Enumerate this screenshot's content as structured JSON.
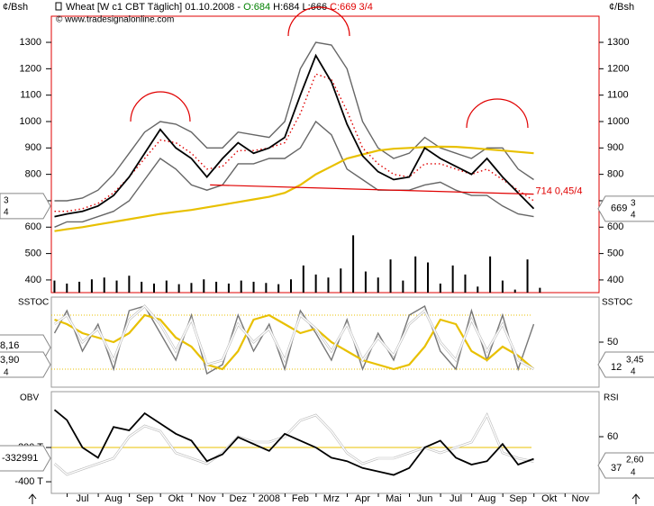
{
  "chart_data": [
    {
      "type": "line",
      "title": "Wheat [W c1 CBT  Täglich] 01.10.2008 -",
      "open_label": "O:684",
      "high_label": "H:684",
      "low_label": "L:666",
      "close_label": "C:669 3/4",
      "source": "© www.tradesignalonline.com",
      "y_label": "¢/Bsh",
      "x": [
        -0.4,
        0,
        0.5,
        1,
        1.5,
        2,
        2.5,
        3,
        3.5,
        4,
        4.5,
        5,
        5.5,
        6,
        6.5,
        7,
        7.5,
        8,
        8.5,
        9,
        9.5,
        10,
        10.5,
        11,
        11.5,
        12,
        12.5,
        13,
        13.5,
        14,
        14.5,
        15
      ],
      "series": [
        {
          "color": "#666666",
          "values": [
            700,
            700,
            710,
            740,
            800,
            880,
            960,
            1000,
            990,
            960,
            900,
            900,
            960,
            950,
            940,
            1000,
            1200,
            1300,
            1290,
            1200,
            1000,
            900,
            860,
            880,
            940,
            900,
            880,
            860,
            900,
            900,
            820,
            780
          ]
        },
        {
          "color": "#666666",
          "values": [
            600,
            620,
            620,
            640,
            660,
            700,
            780,
            860,
            820,
            760,
            740,
            760,
            840,
            840,
            860,
            860,
            900,
            1000,
            950,
            820,
            780,
            740,
            740,
            740,
            760,
            770,
            740,
            720,
            720,
            680,
            650,
            640
          ]
        },
        {
          "color": "#e8c000",
          "values": [
            585,
            592,
            600,
            610,
            620,
            630,
            640,
            650,
            658,
            665,
            675,
            685,
            695,
            705,
            715,
            730,
            760,
            800,
            830,
            860,
            875,
            890,
            897,
            900,
            903,
            905,
            904,
            900,
            895,
            890,
            885,
            880
          ]
        },
        {
          "color": "#e00000",
          "values": [
            660,
            660,
            670,
            690,
            730,
            790,
            860,
            930,
            920,
            880,
            820,
            830,
            890,
            890,
            900,
            920,
            1030,
            1180,
            1160,
            1040,
            900,
            840,
            800,
            790,
            840,
            840,
            820,
            800,
            820,
            780,
            740,
            700
          ]
        },
        {
          "color": "#000000",
          "values": [
            640,
            650,
            660,
            680,
            720,
            790,
            880,
            970,
            900,
            860,
            790,
            860,
            920,
            880,
            900,
            940,
            1100,
            1250,
            1150,
            990,
            870,
            810,
            780,
            790,
            900,
            860,
            830,
            800,
            860,
            790,
            730,
            670
          ]
        }
      ],
      "trendline": {
        "x": [
          4.6,
          15
        ],
        "values": [
          760,
          725
        ],
        "color": "#e00000"
      },
      "trendline_label": "714 0,45/4",
      "last_price": {
        "main": "669",
        "num": "3",
        "den": "4"
      },
      "left_tag": {
        "num": "3",
        "den": "4"
      },
      "xlim": [
        -0.5,
        17.1
      ],
      "xticks": [
        {
          "value": 0.5,
          "label": "Jul"
        },
        {
          "value": 1.5,
          "label": "Aug"
        },
        {
          "value": 2.5,
          "label": "Sep"
        },
        {
          "value": 3.5,
          "label": "Okt"
        },
        {
          "value": 4.5,
          "label": "Nov"
        },
        {
          "value": 5.5,
          "label": "Dez"
        },
        {
          "value": 6.5,
          "label": "2008"
        },
        {
          "value": 7.5,
          "label": "Feb"
        },
        {
          "value": 8.5,
          "label": "Mrz"
        },
        {
          "value": 9.5,
          "label": "Apr"
        },
        {
          "value": 10.5,
          "label": "Mai"
        },
        {
          "value": 11.5,
          "label": "Jun"
        },
        {
          "value": 12.5,
          "label": "Jul"
        },
        {
          "value": 13.5,
          "label": "Aug"
        },
        {
          "value": 14.5,
          "label": "Sep"
        },
        {
          "value": 15.5,
          "label": "Okt"
        },
        {
          "value": 16.5,
          "label": "Nov"
        }
      ],
      "ylim": [
        352,
        1399
      ],
      "yticks": [
        400,
        500,
        600,
        700,
        800,
        900,
        1000,
        1100,
        1200,
        1300
      ]
    },
    {
      "type": "bar",
      "x": [
        -0.4,
        0,
        0.4,
        0.8,
        1.2,
        1.6,
        2,
        2.4,
        2.8,
        3.2,
        3.6,
        4,
        4.4,
        4.8,
        5.2,
        5.6,
        6,
        6.4,
        6.8,
        7.2,
        7.6,
        8,
        8.4,
        8.8,
        9.2,
        9.6,
        10,
        10.4,
        10.8,
        11.2,
        11.6,
        12,
        12.4,
        12.8,
        13.2,
        13.6,
        14,
        14.4,
        14.8,
        15.2
      ],
      "values": [
        20,
        15,
        18,
        22,
        25,
        20,
        28,
        18,
        15,
        20,
        14,
        16,
        22,
        18,
        15,
        20,
        18,
        16,
        14,
        22,
        45,
        30,
        25,
        40,
        95,
        35,
        25,
        55,
        20,
        60,
        50,
        15,
        45,
        30,
        10,
        60,
        20,
        5,
        55,
        8
      ],
      "color": "#000000",
      "ylim": [
        0,
        100
      ]
    },
    {
      "type": "line",
      "title": "SSTOC",
      "x": [
        -0.4,
        0,
        0.5,
        1,
        1.5,
        2,
        2.5,
        3,
        3.5,
        4,
        4.5,
        5,
        5.5,
        6,
        6.5,
        7,
        7.5,
        8,
        8.5,
        9,
        9.5,
        10,
        10.5,
        11,
        11.5,
        12,
        12.5,
        13,
        13.5,
        14,
        14.5,
        15
      ],
      "series": [
        {
          "color": "#777777",
          "values": [
            60,
            85,
            40,
            70,
            20,
            85,
            90,
            60,
            30,
            80,
            15,
            25,
            80,
            40,
            70,
            20,
            85,
            60,
            30,
            75,
            20,
            60,
            30,
            80,
            90,
            40,
            20,
            85,
            30,
            80,
            20,
            70
          ]
        },
        {
          "color": "#e8c000",
          "values": [
            75,
            70,
            60,
            55,
            50,
            60,
            80,
            75,
            55,
            45,
            25,
            20,
            40,
            75,
            80,
            70,
            60,
            65,
            50,
            40,
            30,
            25,
            20,
            25,
            45,
            75,
            70,
            40,
            30,
            45,
            35,
            20
          ]
        },
        {
          "color": "#ffffff",
          "values": [
            70,
            80,
            50,
            65,
            30,
            75,
            90,
            70,
            40,
            75,
            25,
            30,
            70,
            50,
            65,
            30,
            80,
            65,
            40,
            70,
            30,
            55,
            35,
            70,
            85,
            50,
            30,
            75,
            40,
            70,
            30,
            20
          ]
        }
      ],
      "reference_lines": [
        20,
        80
      ],
      "reference_color": "#e8c000",
      "left_labels": [
        "8,16",
        "3,90",
        "4"
      ],
      "right_label": {
        "main": "12",
        "num": "3,45",
        "den": "4"
      },
      "ylim": [
        0,
        100
      ],
      "yticks": [
        50
      ]
    },
    {
      "type": "line",
      "title": "OBV",
      "y2_title": "RSI",
      "x": [
        -0.4,
        0,
        0.5,
        1,
        1.5,
        2,
        2.5,
        3,
        3.5,
        4,
        4.5,
        5,
        5.5,
        6,
        6.5,
        7,
        7.5,
        8,
        8.5,
        9,
        9.5,
        10,
        10.5,
        11,
        11.5,
        12,
        12.5,
        13,
        13.5,
        14,
        14.5,
        15
      ],
      "series": [
        {
          "color": "#ffffff",
          "axis": "y2",
          "values": [
            35,
            25,
            30,
            35,
            40,
            60,
            70,
            65,
            45,
            40,
            35,
            45,
            60,
            55,
            55,
            60,
            75,
            80,
            65,
            45,
            35,
            40,
            40,
            45,
            50,
            45,
            50,
            55,
            80,
            45,
            40,
            37
          ]
        },
        {
          "color": "#000000",
          "values": [
            -190000,
            -220000,
            -300000,
            -330000,
            -240000,
            -250000,
            -200000,
            -230000,
            -260000,
            -280000,
            -340000,
            -320000,
            -270000,
            -290000,
            -310000,
            -260000,
            -280000,
            -300000,
            -330000,
            -340000,
            -360000,
            -370000,
            -380000,
            -360000,
            -300000,
            -280000,
            -330000,
            -350000,
            -340000,
            -290000,
            -350000,
            -332991
          ]
        }
      ],
      "reference_line_y2": 50,
      "reference_color": "#e8c000",
      "left_label": "-332991",
      "right_label": {
        "main": "37",
        "num": "2,60",
        "den": "4"
      },
      "ylim": [
        -434000,
        -137000
      ],
      "yticks": [
        {
          "value": -300000,
          "label": "-300 T"
        },
        {
          "value": -400000,
          "label": "-400 T"
        }
      ],
      "y2lim": [
        7.5,
        101.7
      ],
      "y2ticks": [
        60
      ]
    }
  ]
}
